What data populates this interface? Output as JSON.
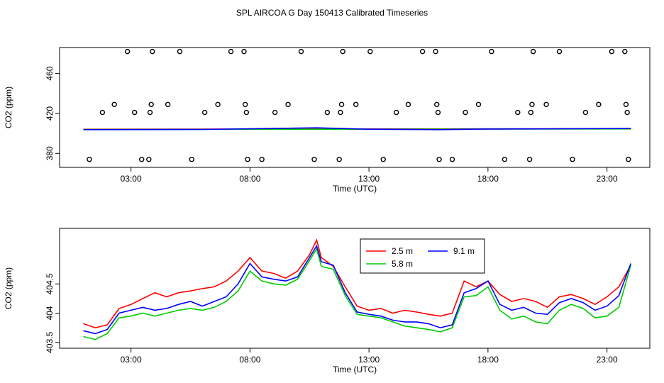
{
  "title": "SPL AIRCOA G  Day 150413  Calibrated Timeseries",
  "chart_data": [
    {
      "type": "scatter",
      "xlabel": "Time (UTC)",
      "ylabel": "CO2 (ppm)",
      "x_unit": "hours UTC",
      "xlim": [
        0.0,
        24.8
      ],
      "ylim": [
        366,
        486
      ],
      "x_ticks": [
        {
          "value": 3,
          "label": "03:00"
        },
        {
          "value": 8,
          "label": "08:00"
        },
        {
          "value": 13,
          "label": "13:00"
        },
        {
          "value": 18,
          "label": "18:00"
        },
        {
          "value": 23,
          "label": "23:00"
        }
      ],
      "y_ticks": [
        {
          "value": 380,
          "label": "380"
        },
        {
          "value": 420,
          "label": "420"
        },
        {
          "value": 460,
          "label": "460"
        }
      ],
      "grid": false,
      "points": [
        [
          1.25,
          374
        ],
        [
          1.8,
          421
        ],
        [
          2.3,
          429
        ],
        [
          2.85,
          482
        ],
        [
          3.45,
          374
        ],
        [
          3.15,
          421
        ],
        [
          3.75,
          374
        ],
        [
          3.8,
          421
        ],
        [
          3.85,
          429
        ],
        [
          3.9,
          482
        ],
        [
          4.55,
          429
        ],
        [
          5.05,
          482
        ],
        [
          5.55,
          374
        ],
        [
          6.1,
          421
        ],
        [
          6.65,
          429
        ],
        [
          7.2,
          482
        ],
        [
          7.75,
          482
        ],
        [
          7.8,
          429
        ],
        [
          7.85,
          421
        ],
        [
          7.9,
          374
        ],
        [
          8.5,
          374
        ],
        [
          9.05,
          421
        ],
        [
          9.6,
          429
        ],
        [
          10.15,
          482
        ],
        [
          10.7,
          374
        ],
        [
          11.25,
          421
        ],
        [
          11.8,
          421
        ],
        [
          11.85,
          429
        ],
        [
          11.9,
          482
        ],
        [
          11.75,
          374
        ],
        [
          12.45,
          429
        ],
        [
          13.05,
          482
        ],
        [
          13.6,
          374
        ],
        [
          14.15,
          421
        ],
        [
          14.65,
          429
        ],
        [
          15.25,
          482
        ],
        [
          15.8,
          482
        ],
        [
          15.85,
          429
        ],
        [
          15.9,
          421
        ],
        [
          15.95,
          374
        ],
        [
          16.5,
          374
        ],
        [
          17.05,
          421
        ],
        [
          17.6,
          429
        ],
        [
          18.15,
          482
        ],
        [
          18.7,
          374
        ],
        [
          19.25,
          421
        ],
        [
          19.75,
          374
        ],
        [
          19.8,
          421
        ],
        [
          19.85,
          429
        ],
        [
          19.9,
          482
        ],
        [
          20.45,
          429
        ],
        [
          21.0,
          482
        ],
        [
          21.55,
          374
        ],
        [
          22.1,
          421
        ],
        [
          22.65,
          429
        ],
        [
          23.2,
          482
        ],
        [
          23.75,
          482
        ],
        [
          23.8,
          429
        ],
        [
          23.85,
          421
        ],
        [
          23.9,
          374
        ]
      ],
      "series": [
        {
          "name": "",
          "color": "#ff0000",
          "x": [
            1.0,
            24.0
          ],
          "values": [
            404.2,
            404.8
          ]
        },
        {
          "name": "",
          "color": "#00cc00",
          "x": [
            1.0,
            24.0
          ],
          "values": [
            404.0,
            404.5
          ]
        },
        {
          "name": "",
          "color": "#0000ff",
          "x": [
            1.0,
            6.0,
            8.0,
            10.8,
            13.0,
            16.0,
            18.0,
            24.0
          ],
          "values": [
            403.8,
            404.0,
            404.6,
            405.6,
            404.2,
            403.8,
            404.4,
            404.9
          ]
        }
      ]
    },
    {
      "type": "line",
      "xlabel": "Time (UTC)",
      "ylabel": "CO2 (ppm)",
      "x_unit": "hours UTC",
      "xlim": [
        0.0,
        24.8
      ],
      "ylim": [
        403.4,
        405.45
      ],
      "x_ticks": [
        {
          "value": 3,
          "label": "03:00"
        },
        {
          "value": 8,
          "label": "08:00"
        },
        {
          "value": 13,
          "label": "13:00"
        },
        {
          "value": 18,
          "label": "18:00"
        },
        {
          "value": 23,
          "label": "23:00"
        }
      ],
      "y_ticks": [
        {
          "value": 403.5,
          "label": "403.5"
        },
        {
          "value": 404.0,
          "label": "404"
        },
        {
          "value": 404.5,
          "label": "404.5"
        }
      ],
      "grid": false,
      "legend": {
        "placement": "top-center",
        "entries": [
          {
            "label": "2.5 m",
            "color": "#ff0000"
          },
          {
            "label": "9.1 m",
            "color": "#0000ff"
          },
          {
            "label": "5.8 m",
            "color": "#00cc00"
          }
        ]
      },
      "x": [
        1.0,
        1.5,
        2.0,
        2.5,
        3.0,
        3.5,
        4.0,
        4.5,
        5.0,
        5.5,
        6.0,
        6.5,
        7.0,
        7.5,
        8.0,
        8.5,
        9.0,
        9.5,
        10.0,
        10.5,
        10.8,
        11.0,
        11.5,
        12.0,
        12.5,
        13.0,
        13.5,
        14.0,
        14.5,
        15.0,
        15.5,
        16.0,
        16.5,
        17.0,
        17.5,
        18.0,
        18.5,
        19.0,
        19.5,
        20.0,
        20.5,
        21.0,
        21.5,
        22.0,
        22.5,
        23.0,
        23.5,
        24.0
      ],
      "series": [
        {
          "name": "2.5 m",
          "color": "#ff0000",
          "values": [
            403.82,
            403.75,
            403.8,
            404.08,
            404.15,
            404.25,
            404.35,
            404.28,
            404.35,
            404.38,
            404.42,
            404.45,
            404.55,
            404.72,
            404.95,
            404.72,
            404.68,
            404.6,
            404.72,
            405.0,
            405.25,
            404.95,
            404.8,
            404.45,
            404.12,
            404.05,
            404.08,
            404.0,
            404.05,
            404.02,
            403.98,
            403.95,
            404.0,
            404.55,
            404.45,
            404.55,
            404.32,
            404.2,
            404.25,
            404.2,
            404.1,
            404.28,
            404.32,
            404.25,
            404.15,
            404.28,
            404.45,
            404.82
          ]
        },
        {
          "name": "5.8 m",
          "color": "#00cc00",
          "values": [
            403.6,
            403.55,
            403.65,
            403.92,
            403.95,
            404.0,
            403.95,
            404.0,
            404.05,
            404.08,
            404.05,
            404.1,
            404.2,
            404.38,
            404.72,
            404.55,
            404.5,
            404.48,
            404.58,
            404.9,
            405.1,
            404.8,
            404.75,
            404.3,
            403.98,
            403.95,
            403.92,
            403.85,
            403.78,
            403.75,
            403.72,
            403.68,
            403.75,
            404.28,
            404.3,
            404.45,
            404.05,
            403.9,
            403.95,
            403.85,
            403.82,
            404.05,
            404.15,
            404.08,
            403.92,
            403.95,
            404.1,
            404.82
          ]
        },
        {
          "name": "9.1 m",
          "color": "#0000ff",
          "values": [
            403.7,
            403.65,
            403.72,
            404.0,
            404.05,
            404.1,
            404.05,
            404.08,
            404.15,
            404.2,
            404.12,
            404.2,
            404.28,
            404.5,
            404.85,
            404.62,
            404.58,
            404.55,
            404.62,
            404.95,
            405.15,
            404.88,
            404.82,
            404.35,
            404.02,
            403.98,
            403.95,
            403.88,
            403.85,
            403.85,
            403.82,
            403.75,
            403.8,
            404.35,
            404.42,
            404.55,
            404.15,
            404.05,
            404.1,
            404.0,
            403.98,
            404.18,
            404.25,
            404.18,
            404.05,
            404.12,
            404.3,
            404.85
          ]
        }
      ]
    }
  ]
}
